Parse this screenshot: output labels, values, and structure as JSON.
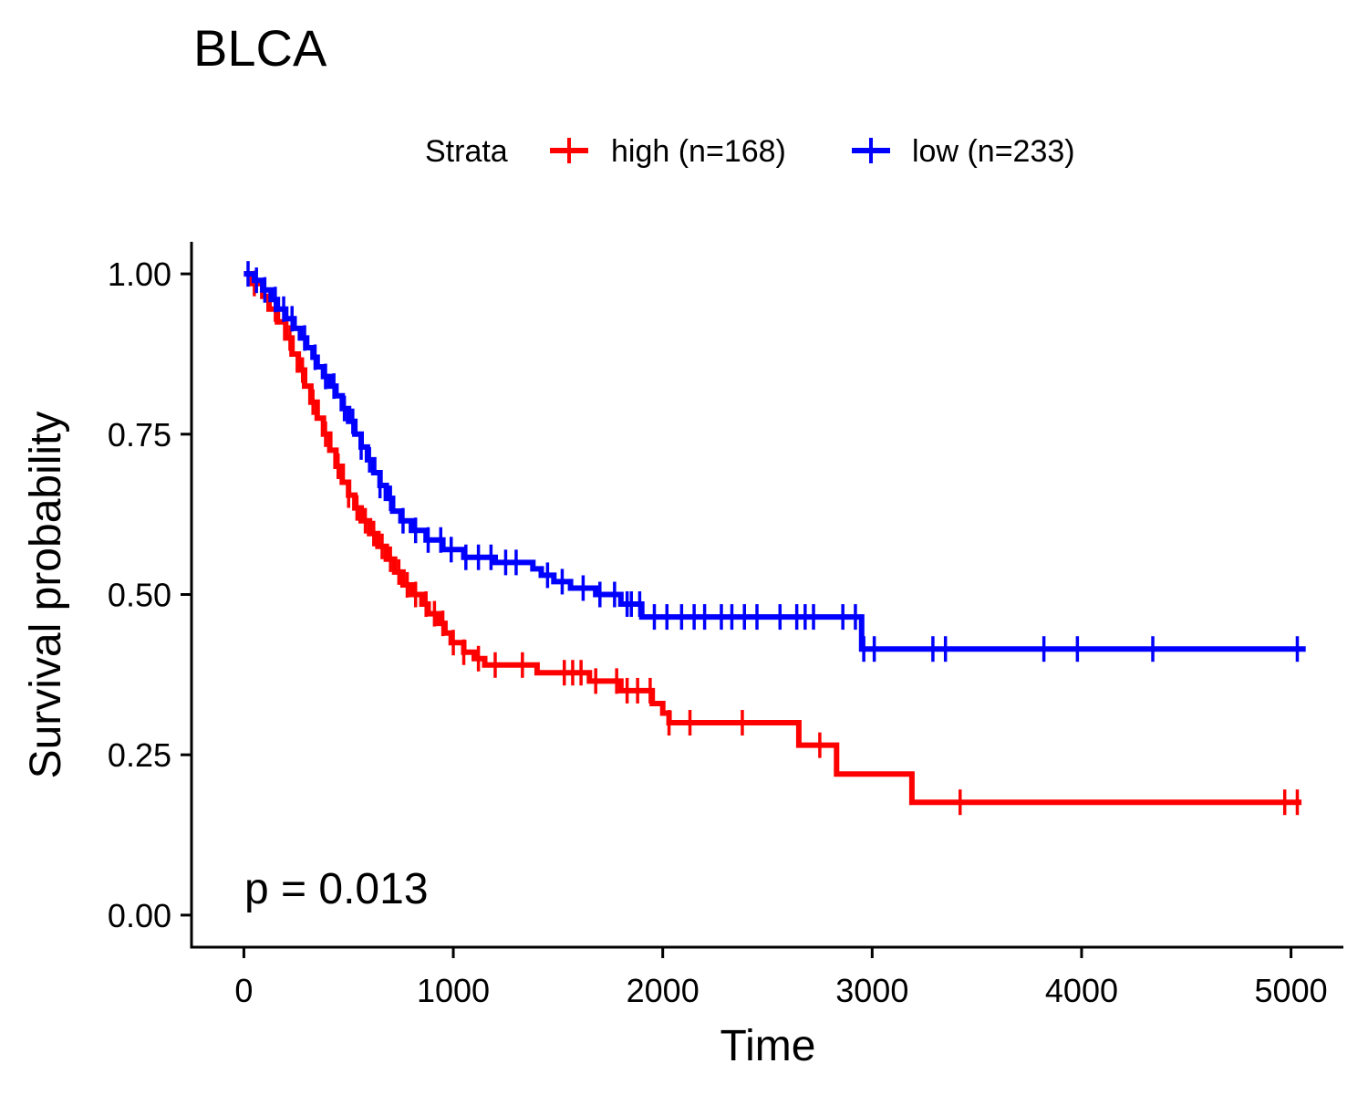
{
  "chart_data": {
    "type": "line",
    "subtype": "kaplan-meier",
    "title": "BLCA",
    "xlabel": "Time",
    "ylabel": "Survival probability",
    "xlim": [
      -250,
      5250
    ],
    "ylim": [
      -0.05,
      1.05
    ],
    "x_ticks": [
      0,
      1000,
      2000,
      3000,
      4000,
      5000
    ],
    "x_tick_labels": [
      "0",
      "1000",
      "2000",
      "3000",
      "4000",
      "5000"
    ],
    "y_ticks": [
      0,
      0.25,
      0.5,
      0.75,
      1.0
    ],
    "y_tick_labels": [
      "0.00",
      "0.25",
      "0.50",
      "0.75",
      "1.00"
    ],
    "grid": false,
    "legend": {
      "title": "Strata",
      "position": "top",
      "entries": [
        "high (n=168)",
        "low (n=233)"
      ]
    },
    "annotation": "p = 0.013",
    "series": [
      {
        "name": "high (n=168)",
        "color": "#FF0000",
        "steps": [
          [
            0,
            1.0
          ],
          [
            40,
            0.985
          ],
          [
            90,
            0.965
          ],
          [
            120,
            0.945
          ],
          [
            160,
            0.925
          ],
          [
            200,
            0.9
          ],
          [
            230,
            0.875
          ],
          [
            260,
            0.85
          ],
          [
            290,
            0.825
          ],
          [
            320,
            0.8
          ],
          [
            350,
            0.775
          ],
          [
            380,
            0.75
          ],
          [
            410,
            0.725
          ],
          [
            440,
            0.7
          ],
          [
            470,
            0.675
          ],
          [
            500,
            0.655
          ],
          [
            530,
            0.635
          ],
          [
            560,
            0.615
          ],
          [
            600,
            0.595
          ],
          [
            640,
            0.575
          ],
          [
            680,
            0.555
          ],
          [
            720,
            0.535
          ],
          [
            760,
            0.515
          ],
          [
            800,
            0.5
          ],
          [
            850,
            0.485
          ],
          [
            880,
            0.47
          ],
          [
            930,
            0.455
          ],
          [
            960,
            0.44
          ],
          [
            990,
            0.425
          ],
          [
            1050,
            0.41
          ],
          [
            1100,
            0.4
          ],
          [
            1150,
            0.39
          ],
          [
            1400,
            0.378
          ],
          [
            1650,
            0.365
          ],
          [
            1800,
            0.35
          ],
          [
            1950,
            0.33
          ],
          [
            2000,
            0.315
          ],
          [
            2030,
            0.3
          ],
          [
            2650,
            0.265
          ],
          [
            2830,
            0.22
          ],
          [
            3190,
            0.176
          ],
          [
            5050,
            0.176
          ]
        ],
        "censor_times": [
          50,
          150,
          220,
          280,
          330,
          390,
          450,
          500,
          540,
          580,
          620,
          660,
          700,
          740,
          780,
          820,
          870,
          910,
          950,
          1000,
          1050,
          1120,
          1200,
          1330,
          1530,
          1570,
          1610,
          1680,
          1780,
          1830,
          1880,
          1940,
          2030,
          2130,
          2380,
          2750,
          3420,
          4970,
          5030
        ]
      },
      {
        "name": "low (n=233)",
        "color": "#0000FF",
        "steps": [
          [
            0,
            1.0
          ],
          [
            50,
            0.99
          ],
          [
            90,
            0.975
          ],
          [
            130,
            0.96
          ],
          [
            160,
            0.945
          ],
          [
            200,
            0.93
          ],
          [
            240,
            0.915
          ],
          [
            270,
            0.9
          ],
          [
            300,
            0.885
          ],
          [
            330,
            0.87
          ],
          [
            350,
            0.855
          ],
          [
            380,
            0.84
          ],
          [
            410,
            0.825
          ],
          [
            440,
            0.81
          ],
          [
            470,
            0.79
          ],
          [
            500,
            0.77
          ],
          [
            530,
            0.75
          ],
          [
            560,
            0.73
          ],
          [
            590,
            0.71
          ],
          [
            620,
            0.69
          ],
          [
            650,
            0.67
          ],
          [
            680,
            0.65
          ],
          [
            710,
            0.63
          ],
          [
            750,
            0.615
          ],
          [
            800,
            0.6
          ],
          [
            870,
            0.585
          ],
          [
            950,
            0.57
          ],
          [
            1050,
            0.558
          ],
          [
            1200,
            0.55
          ],
          [
            1380,
            0.54
          ],
          [
            1420,
            0.53
          ],
          [
            1480,
            0.52
          ],
          [
            1560,
            0.51
          ],
          [
            1680,
            0.5
          ],
          [
            1800,
            0.485
          ],
          [
            1900,
            0.465
          ],
          [
            2950,
            0.415
          ],
          [
            5070,
            0.415
          ]
        ],
        "censor_times": [
          20,
          60,
          100,
          150,
          190,
          230,
          290,
          340,
          390,
          430,
          480,
          520,
          560,
          600,
          650,
          700,
          760,
          820,
          880,
          940,
          990,
          1060,
          1120,
          1180,
          1250,
          1300,
          1450,
          1520,
          1620,
          1700,
          1770,
          1830,
          1850,
          1890,
          1960,
          2020,
          2090,
          2150,
          2200,
          2280,
          2330,
          2390,
          2450,
          2560,
          2640,
          2680,
          2720,
          2860,
          2920,
          2960,
          3010,
          3290,
          3350,
          3820,
          3980,
          4340,
          5030
        ]
      }
    ]
  }
}
